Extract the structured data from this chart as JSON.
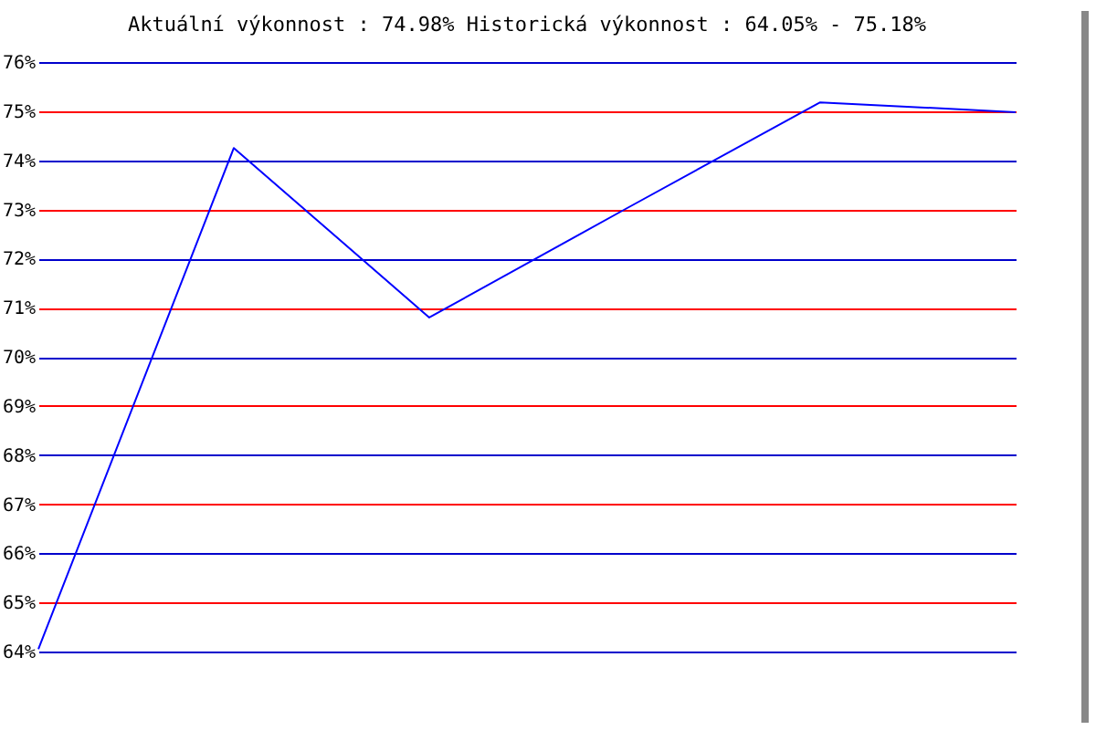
{
  "chart_data": {
    "type": "line",
    "title": "Aktuální výkonnost : 74.98%  Historická výkonnost : 64.05% - 75.18%",
    "categories": [
      null,
      null,
      null,
      null,
      null,
      null
    ],
    "series": [
      {
        "color": "#0000ff",
        "values": [
          64.05,
          74.25,
          70.8,
          73.0,
          75.18,
          74.98
        ]
      }
    ],
    "ylim": [
      64,
      76
    ],
    "yticks": [
      {
        "value": 64,
        "label": "64%"
      },
      {
        "value": 65,
        "label": "65%"
      },
      {
        "value": 66,
        "label": "66%"
      },
      {
        "value": 67,
        "label": "67%"
      },
      {
        "value": 68,
        "label": "68%"
      },
      {
        "value": 69,
        "label": "69%"
      },
      {
        "value": 70,
        "label": "70%"
      },
      {
        "value": 71,
        "label": "71%"
      },
      {
        "value": 72,
        "label": "72%"
      },
      {
        "value": 73,
        "label": "73%"
      },
      {
        "value": 74,
        "label": "74%"
      },
      {
        "value": 75,
        "label": "75%"
      },
      {
        "value": 76,
        "label": "76%"
      }
    ],
    "grid": "y",
    "tick_labels": "y"
  }
}
